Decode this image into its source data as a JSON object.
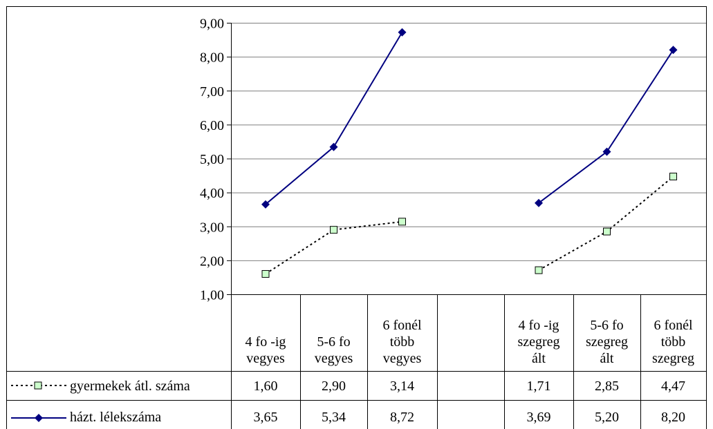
{
  "chart_data": {
    "type": "line",
    "categories": [
      [
        "4 fo -ig",
        "vegyes"
      ],
      [
        "5-6 fo",
        "vegyes"
      ],
      [
        "6 fonél",
        "több",
        "vegyes"
      ],
      [],
      [
        "4 fo -ig",
        "szegreg",
        "ált"
      ],
      [
        "5-6 fo",
        "szegreg",
        "ált"
      ],
      [
        "6 fonél",
        "több",
        "szegreg"
      ]
    ],
    "series": [
      {
        "name": "gyermekek átl. száma",
        "values": [
          1.6,
          2.9,
          3.14,
          null,
          1.71,
          2.85,
          4.47
        ],
        "labels": [
          "1,60",
          "2,90",
          "3,14",
          "",
          "1,71",
          "2,85",
          "4,47"
        ],
        "color": "#000000",
        "marker_fill": "#ccffcc",
        "style": "dotted",
        "marker": "square"
      },
      {
        "name": "házt. lélekszáma",
        "values": [
          3.65,
          5.34,
          8.72,
          null,
          3.69,
          5.2,
          8.2
        ],
        "labels": [
          "3,65",
          "5,34",
          "8,72",
          "",
          "3,69",
          "5,20",
          "8,20"
        ],
        "color": "#000080",
        "style": "solid",
        "marker": "diamond"
      }
    ],
    "ylim": [
      1,
      9
    ],
    "yticks": [
      "1,00",
      "2,00",
      "3,00",
      "4,00",
      "5,00",
      "6,00",
      "7,00",
      "8,00",
      "9,00"
    ],
    "grid": true,
    "legend": "data-table"
  }
}
